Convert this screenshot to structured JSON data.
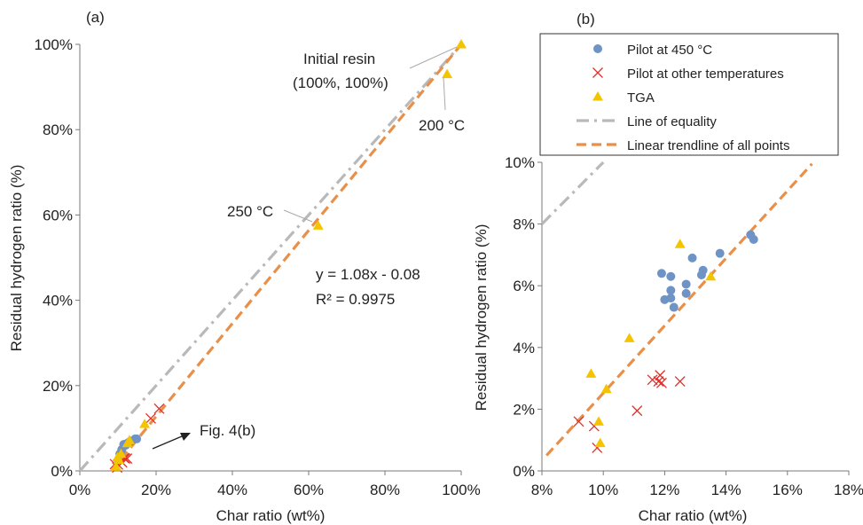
{
  "colors": {
    "pilot_450": "#6f93c4",
    "pilot_other": "#e0302a",
    "tga": "#f5c400",
    "equality": "#b9b9b9",
    "trendline": "#e8904a",
    "axis": "#7a7a7a"
  },
  "chart_data": [
    {
      "panel_label": "(a)",
      "type": "scatter",
      "xlabel": "Char ratio (wt%)",
      "ylabel": "Residual hydrogen ratio (%)",
      "xlim": [
        0,
        100
      ],
      "ylim": [
        0,
        100
      ],
      "x_ticks": [
        0,
        20,
        40,
        60,
        80,
        100
      ],
      "y_ticks": [
        0,
        20,
        40,
        60,
        80,
        100
      ],
      "x_tick_labels": [
        "0%",
        "20%",
        "40%",
        "60%",
        "80%",
        "100%"
      ],
      "y_tick_labels": [
        "0%",
        "20%",
        "40%",
        "60%",
        "80%",
        "100%"
      ],
      "annotations": {
        "initial_resin_line1": "Initial resin",
        "initial_resin_line2": "(100%, 100%)",
        "t200": "200 °C",
        "t250": "250 °C",
        "equation": "y = 1.08x - 0.08",
        "r2": "R² = 0.9975",
        "fig_ref": "Fig. 4(b)"
      },
      "equality_line": [
        [
          0,
          0
        ],
        [
          100,
          100
        ]
      ],
      "trendline": [
        [
          8.3,
          0
        ],
        [
          100,
          100
        ]
      ],
      "series": [
        {
          "key": "pilot_450",
          "marker": "circle",
          "points": [
            [
              10.5,
              4.0
            ],
            [
              11.0,
              5.0
            ],
            [
              11.5,
              6.2
            ],
            [
              12.0,
              6.0
            ],
            [
              12.5,
              6.5
            ],
            [
              13.0,
              6.8
            ],
            [
              13.5,
              7.0
            ],
            [
              14.5,
              7.5
            ],
            [
              14.9,
              7.5
            ]
          ]
        },
        {
          "key": "pilot_other",
          "marker": "x",
          "points": [
            [
              9.2,
              1.6
            ],
            [
              9.8,
              0.8
            ],
            [
              10.0,
              1.5
            ],
            [
              11.1,
              2.0
            ],
            [
              11.6,
              3.0
            ],
            [
              11.9,
              2.9
            ],
            [
              12.4,
              2.9
            ],
            [
              18.6,
              12.3
            ],
            [
              20.8,
              14.6
            ]
          ]
        },
        {
          "key": "tga",
          "marker": "triangle",
          "points": [
            [
              9.5,
              1.0
            ],
            [
              9.9,
              3.2
            ],
            [
              10.2,
              2.6
            ],
            [
              10.8,
              4.0
            ],
            [
              12.5,
              6.5
            ],
            [
              13.0,
              7.2
            ],
            [
              17.0,
              11.0
            ],
            [
              62.5,
              57.5
            ],
            [
              96.3,
              93.0
            ],
            [
              100,
              100
            ]
          ]
        }
      ]
    },
    {
      "panel_label": "(b)",
      "type": "scatter",
      "xlabel": "Char ratio (wt%)",
      "ylabel": "Residual hydrogen ratio (%)",
      "xlim": [
        8,
        18
      ],
      "ylim": [
        0,
        10
      ],
      "x_ticks": [
        8,
        10,
        12,
        14,
        16,
        18
      ],
      "y_ticks": [
        0,
        2,
        4,
        6,
        8,
        10
      ],
      "x_tick_labels": [
        "8%",
        "10%",
        "12%",
        "14%",
        "16%",
        "18%"
      ],
      "y_tick_labels": [
        "0%",
        "2%",
        "4%",
        "6%",
        "8%",
        "10%"
      ],
      "legend": [
        {
          "key": "pilot_450",
          "label": "Pilot at 450 °C",
          "marker": "circle"
        },
        {
          "key": "pilot_other",
          "label": "Pilot at other temperatures",
          "marker": "x"
        },
        {
          "key": "tga",
          "label": "TGA",
          "marker": "triangle"
        },
        {
          "key": "equality",
          "label": "Line of equality",
          "marker": "dashdot"
        },
        {
          "key": "trendline",
          "label": "Linear trendline of all points",
          "marker": "dash"
        }
      ],
      "equality_line": [
        [
          8,
          8
        ],
        [
          10,
          10
        ]
      ],
      "trendline": [
        [
          8.15,
          0.5
        ],
        [
          16.8,
          9.95
        ]
      ],
      "series": [
        {
          "key": "pilot_450",
          "marker": "circle",
          "points": [
            [
              11.9,
              6.4
            ],
            [
              12.0,
              5.55
            ],
            [
              12.2,
              5.6
            ],
            [
              12.2,
              5.85
            ],
            [
              12.2,
              6.3
            ],
            [
              12.3,
              5.3
            ],
            [
              12.7,
              5.75
            ],
            [
              12.7,
              6.05
            ],
            [
              12.9,
              6.9
            ],
            [
              13.2,
              6.35
            ],
            [
              13.25,
              6.5
            ],
            [
              13.8,
              7.05
            ],
            [
              14.8,
              7.65
            ],
            [
              14.9,
              7.5
            ]
          ]
        },
        {
          "key": "pilot_other",
          "marker": "x",
          "points": [
            [
              9.2,
              1.6
            ],
            [
              9.7,
              1.45
            ],
            [
              9.8,
              0.75
            ],
            [
              11.1,
              1.95
            ],
            [
              11.6,
              2.95
            ],
            [
              11.8,
              2.9
            ],
            [
              11.85,
              3.1
            ],
            [
              11.9,
              2.85
            ],
            [
              12.5,
              2.9
            ]
          ]
        },
        {
          "key": "tga",
          "marker": "triangle",
          "points": [
            [
              9.6,
              3.15
            ],
            [
              9.85,
              1.6
            ],
            [
              9.9,
              0.9
            ],
            [
              10.1,
              2.65
            ],
            [
              10.85,
              4.3
            ],
            [
              12.5,
              7.35
            ],
            [
              13.5,
              6.3
            ]
          ]
        }
      ]
    }
  ]
}
